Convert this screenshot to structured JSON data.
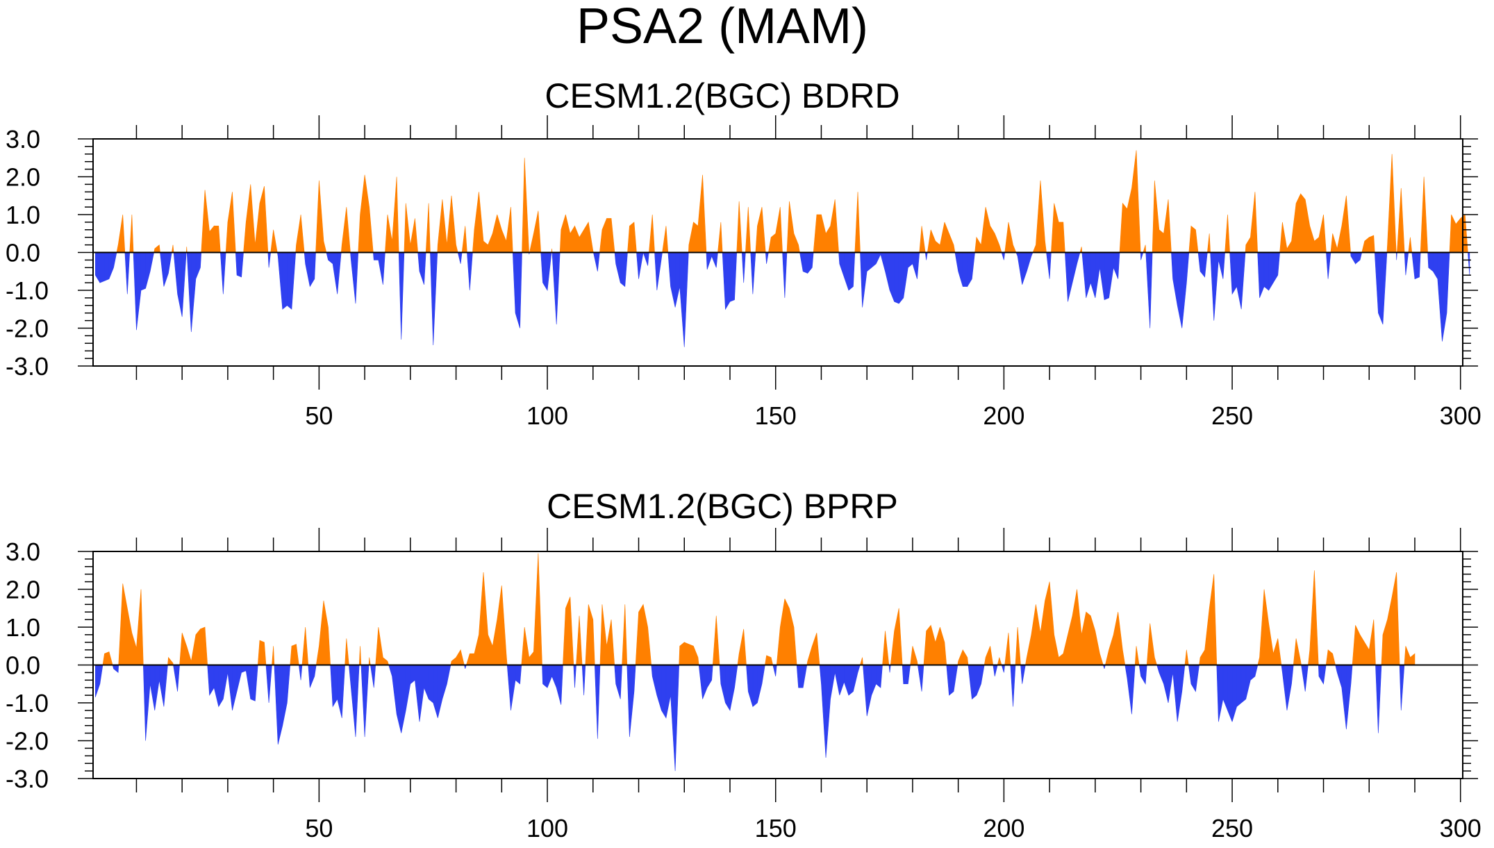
{
  "figure": {
    "title": "PSA2 (MAM)",
    "colors": {
      "positive": "#ff8000",
      "negative": "#2f40f0",
      "axis": "#000000",
      "background": "#ffffff"
    }
  },
  "chart_data": [
    {
      "type": "area",
      "title": "CESM1.2(BGC) BDRD",
      "xlabel": "",
      "ylabel": "",
      "xlim": [
        0.5,
        300.5
      ],
      "ylim": [
        -3.0,
        3.0
      ],
      "x_ticks": [
        50,
        100,
        150,
        200,
        250,
        300
      ],
      "y_ticks": [
        -3.0,
        -2.0,
        -1.0,
        0.0,
        1.0,
        2.0,
        3.0
      ],
      "y_tick_labels": [
        "-3.0",
        "-2.0",
        "-1.0",
        "0.0",
        "1.0",
        "2.0",
        "3.0"
      ],
      "x_tick_labels": [
        "50",
        "100",
        "150",
        "200",
        "250",
        "300"
      ],
      "x": {
        "start": 1,
        "end": 300,
        "step": 1
      },
      "fill_above_zero_color": "#ff8000",
      "fill_below_zero_color": "#2f40f0",
      "values": [
        -0.6,
        -0.8,
        -0.75,
        -0.7,
        -0.4,
        0.2,
        1.0,
        -1.1,
        1.0,
        -2.05,
        -1.0,
        -0.95,
        -0.5,
        0.1,
        0.2,
        -0.9,
        -0.55,
        0.2,
        -1.1,
        -1.7,
        0.15,
        -2.1,
        -0.7,
        -0.4,
        1.65,
        0.55,
        0.7,
        0.7,
        -1.1,
        0.8,
        1.6,
        -0.6,
        -0.65,
        0.8,
        1.8,
        0.2,
        1.3,
        1.75,
        -0.4,
        0.6,
        -0.1,
        -1.5,
        -1.4,
        -1.5,
        0.2,
        1.0,
        -0.3,
        -0.9,
        -0.7,
        1.9,
        0.3,
        -0.2,
        -0.3,
        -1.1,
        0.2,
        1.2,
        -0.2,
        -1.35,
        1.0,
        2.05,
        1.2,
        -0.2,
        -0.2,
        -0.85,
        1.0,
        0.3,
        2.0,
        -2.3,
        1.3,
        0.2,
        0.9,
        -0.5,
        -0.85,
        1.3,
        -2.45,
        0.2,
        1.4,
        0.2,
        1.5,
        0.2,
        -0.3,
        0.7,
        -1.0,
        0.6,
        1.6,
        0.3,
        0.2,
        0.5,
        1.0,
        0.6,
        0.3,
        1.2,
        -1.6,
        -2.0,
        2.5,
        -0.05,
        0.5,
        1.1,
        -0.8,
        -1.0,
        0.1,
        -1.9,
        0.6,
        1.0,
        0.5,
        0.7,
        0.4,
        0.6,
        0.8,
        0.05,
        -0.5,
        0.6,
        0.9,
        0.9,
        -0.3,
        -0.8,
        -0.9,
        0.7,
        0.8,
        -0.7,
        0.0,
        -0.35,
        1.0,
        -1.0,
        -0.15,
        0.7,
        -0.9,
        -1.45,
        -0.9,
        -2.5,
        0.2,
        0.8,
        0.7,
        2.05,
        -0.45,
        -0.1,
        -0.4,
        0.8,
        -1.5,
        -1.3,
        -1.25,
        1.35,
        -0.8,
        1.2,
        -1.1,
        0.7,
        1.2,
        -0.3,
        0.4,
        0.5,
        1.2,
        -1.2,
        1.35,
        0.5,
        0.2,
        -0.5,
        -0.55,
        -0.4,
        1.0,
        1.0,
        0.5,
        0.7,
        1.4,
        -0.3,
        -0.65,
        -1.0,
        -0.9,
        1.6,
        -1.45,
        -0.5,
        -0.4,
        -0.3,
        -0.05,
        -0.5,
        -1.0,
        -1.3,
        -1.35,
        -1.2,
        -0.4,
        -0.3,
        -0.7,
        0.7,
        -0.2,
        0.6,
        0.3,
        0.2,
        0.8,
        0.5,
        0.2,
        -0.5,
        -0.9,
        -0.9,
        -0.7,
        0.4,
        0.2,
        1.2,
        0.7,
        0.5,
        0.2,
        -0.2,
        0.8,
        0.2,
        -0.1,
        -0.85,
        -0.5,
        -0.1,
        0.2,
        1.9,
        0.3,
        -0.7,
        1.3,
        0.8,
        0.8,
        -1.3,
        -0.8,
        -0.3,
        0.15,
        -1.2,
        -0.8,
        -1.2,
        -0.4,
        -1.25,
        -1.2,
        -0.4,
        -0.7,
        1.3,
        1.15,
        1.7,
        2.7,
        -0.2,
        0.2,
        -2.0,
        1.9,
        0.6,
        0.5,
        1.4,
        -0.7,
        -1.4,
        -2.0,
        -0.8,
        0.7,
        0.6,
        -0.5,
        -0.65,
        0.5,
        -1.8,
        -0.2,
        -0.7,
        1.0,
        -1.1,
        -0.9,
        -1.5,
        0.2,
        0.4,
        1.6,
        -1.2,
        -0.9,
        -1.0,
        -0.8,
        -0.6,
        0.8,
        0.1,
        0.3,
        1.3,
        1.55,
        1.4,
        0.7,
        0.3,
        0.4,
        1.0,
        -0.7,
        0.5,
        0.1,
        0.7,
        1.5,
        -0.1,
        -0.3,
        -0.2,
        0.3,
        0.4,
        0.45,
        -1.6,
        -1.9,
        0.2,
        2.6,
        -0.2,
        1.7,
        -0.6,
        0.4,
        -0.7,
        -0.65,
        2.0,
        -0.4,
        -0.5,
        -0.7,
        -2.35,
        -1.6,
        1.0,
        0.75,
        0.9,
        1.0,
        -0.6
      ],
      "sample_step": 1
    },
    {
      "type": "area",
      "title": "CESM1.2(BGC) BPRP",
      "xlabel": "",
      "ylabel": "",
      "xlim": [
        0.5,
        300.5
      ],
      "ylim": [
        -3.0,
        3.0
      ],
      "x_ticks": [
        50,
        100,
        150,
        200,
        250,
        300
      ],
      "y_ticks": [
        -3.0,
        -2.0,
        -1.0,
        0.0,
        1.0,
        2.0,
        3.0
      ],
      "y_tick_labels": [
        "-3.0",
        "-2.0",
        "-1.0",
        "0.0",
        "1.0",
        "2.0",
        "3.0"
      ],
      "x_tick_labels": [
        "50",
        "100",
        "150",
        "200",
        "250",
        "300"
      ],
      "x": {
        "start": 1,
        "end": 300,
        "step": 1
      },
      "fill_above_zero_color": "#ff8000",
      "fill_below_zero_color": "#2f40f0",
      "values": [
        -0.85,
        -0.5,
        0.3,
        0.35,
        -0.1,
        -0.2,
        2.15,
        1.5,
        0.85,
        0.45,
        2.0,
        -2.0,
        -0.5,
        -1.2,
        -0.4,
        -1.1,
        0.2,
        0.05,
        -0.7,
        0.85,
        0.5,
        0.1,
        0.8,
        0.95,
        1.0,
        -0.8,
        -0.6,
        -1.1,
        -0.9,
        -0.2,
        -1.2,
        -0.7,
        -0.2,
        -0.15,
        -0.9,
        -0.95,
        0.65,
        0.6,
        -1.0,
        0.5,
        -2.1,
        -1.6,
        -1.0,
        0.5,
        0.55,
        -0.4,
        1.0,
        -0.6,
        -0.3,
        0.5,
        1.7,
        1.0,
        -1.1,
        -0.9,
        -1.4,
        0.7,
        -0.6,
        -1.9,
        0.5,
        -1.9,
        0.2,
        -0.6,
        1.0,
        0.2,
        0.1,
        -0.3,
        -1.3,
        -1.8,
        -1.2,
        -0.5,
        -0.4,
        -1.5,
        -0.6,
        -0.9,
        -1.0,
        -1.4,
        -0.9,
        -0.5,
        0.1,
        0.2,
        0.4,
        -0.1,
        0.3,
        0.3,
        0.8,
        2.45,
        0.8,
        0.5,
        1.2,
        2.1,
        0.3,
        -1.2,
        -0.4,
        -0.5,
        1.0,
        0.2,
        0.35,
        2.95,
        -0.5,
        -0.6,
        -0.3,
        -0.6,
        -1.05,
        1.5,
        1.8,
        -0.6,
        1.3,
        -0.8,
        1.6,
        1.2,
        -1.95,
        1.6,
        0.5,
        1.2,
        -0.5,
        -0.9,
        1.6,
        -1.9,
        -0.7,
        1.4,
        1.6,
        1.0,
        -0.3,
        -0.8,
        -1.2,
        -1.4,
        -0.8,
        -2.8,
        0.5,
        0.6,
        0.55,
        0.5,
        0.2,
        -0.9,
        -0.6,
        -0.4,
        1.3,
        -0.5,
        -1.0,
        -1.2,
        -0.6,
        0.3,
        0.95,
        -0.7,
        -1.1,
        -1.0,
        -0.5,
        0.25,
        0.2,
        -0.3,
        1.0,
        1.75,
        1.5,
        1.0,
        -0.6,
        -0.6,
        0.1,
        0.5,
        0.85,
        -0.5,
        -2.45,
        -0.9,
        -0.2,
        -0.8,
        -0.45,
        -0.8,
        -0.7,
        -0.2,
        0.2,
        -1.35,
        -0.8,
        -0.5,
        -0.6,
        0.9,
        -0.2,
        0.9,
        1.5,
        -0.5,
        -0.5,
        0.5,
        0.1,
        -0.7,
        0.9,
        1.05,
        0.6,
        1.0,
        0.6,
        -0.8,
        -0.7,
        0.1,
        0.4,
        0.2,
        -0.9,
        -0.8,
        -0.5,
        0.2,
        0.5,
        -0.3,
        0.2,
        -0.2,
        0.85,
        -1.1,
        1.0,
        -0.5,
        0.2,
        0.8,
        1.6,
        0.85,
        1.7,
        2.2,
        0.8,
        0.2,
        0.3,
        0.8,
        1.3,
        2.0,
        0.8,
        1.4,
        1.3,
        0.9,
        0.3,
        -0.1,
        0.4,
        0.8,
        1.4,
        0.4,
        -0.35,
        -1.3,
        0.5,
        -0.3,
        -0.5,
        1.1,
        0.2,
        -0.2,
        -0.5,
        -1.0,
        -0.2,
        -1.5,
        -0.7,
        0.4,
        -0.5,
        -0.7,
        0.2,
        0.4,
        1.5,
        2.4,
        -1.5,
        -0.9,
        -1.2,
        -1.5,
        -1.1,
        -1.0,
        -0.9,
        -0.4,
        -0.3,
        0.2,
        2.0,
        1.1,
        0.3,
        0.7,
        -0.2,
        -1.2,
        -0.5,
        0.7,
        0.1,
        -0.7,
        0.4,
        2.5,
        -0.3,
        -0.5,
        0.4,
        0.3,
        -0.2,
        -0.6,
        -1.7,
        -0.5,
        1.05,
        0.8,
        0.6,
        0.4,
        1.2,
        -1.8,
        0.8,
        1.2,
        1.8,
        2.45,
        -1.2,
        0.5,
        0.2,
        0.3
      ],
      "sample_step": 1
    }
  ]
}
